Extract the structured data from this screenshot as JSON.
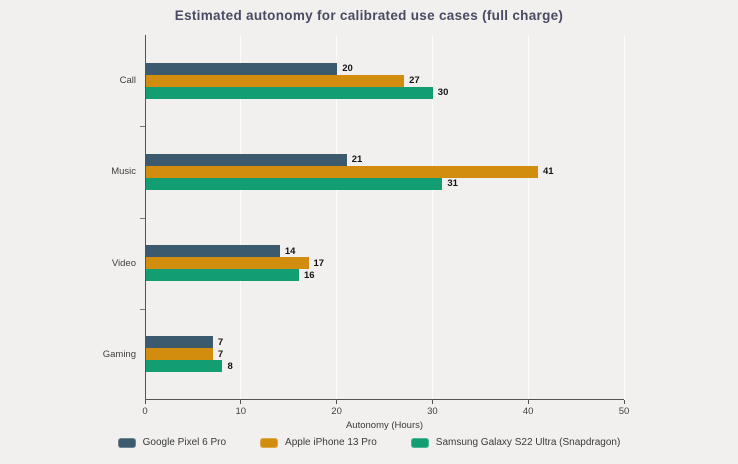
{
  "title": "Estimated autonomy for calibrated use cases (full charge)",
  "chart_data": {
    "type": "bar",
    "orientation": "horizontal",
    "title": "Estimated autonomy for calibrated use cases (full charge)",
    "categories": [
      "Call",
      "Music",
      "Video",
      "Gaming"
    ],
    "series": [
      {
        "name": "Google Pixel 6 Pro",
        "color": "#3c5a6e",
        "values": [
          20,
          21,
          14,
          7
        ]
      },
      {
        "name": "Apple iPhone 13 Pro",
        "color": "#d28d0e",
        "values": [
          27,
          41,
          17,
          7
        ]
      },
      {
        "name": "Samsung Galaxy S22 Ultra (Snapdragon)",
        "color": "#129d72",
        "values": [
          30,
          31,
          16,
          8
        ]
      }
    ],
    "xlabel": "Autonomy (Hours)",
    "xlim": [
      0,
      50
    ],
    "xticks": [
      0,
      10,
      20,
      30,
      40,
      50
    ],
    "grid": true,
    "legend_position": "bottom",
    "colors": {
      "background": "#f1f0ee",
      "gridline": "#fcfcfb",
      "axis": "#555350",
      "title_text": "#4a4a64",
      "value_label_text": "#141414",
      "tick_label_text": "#3f3f3f"
    }
  }
}
